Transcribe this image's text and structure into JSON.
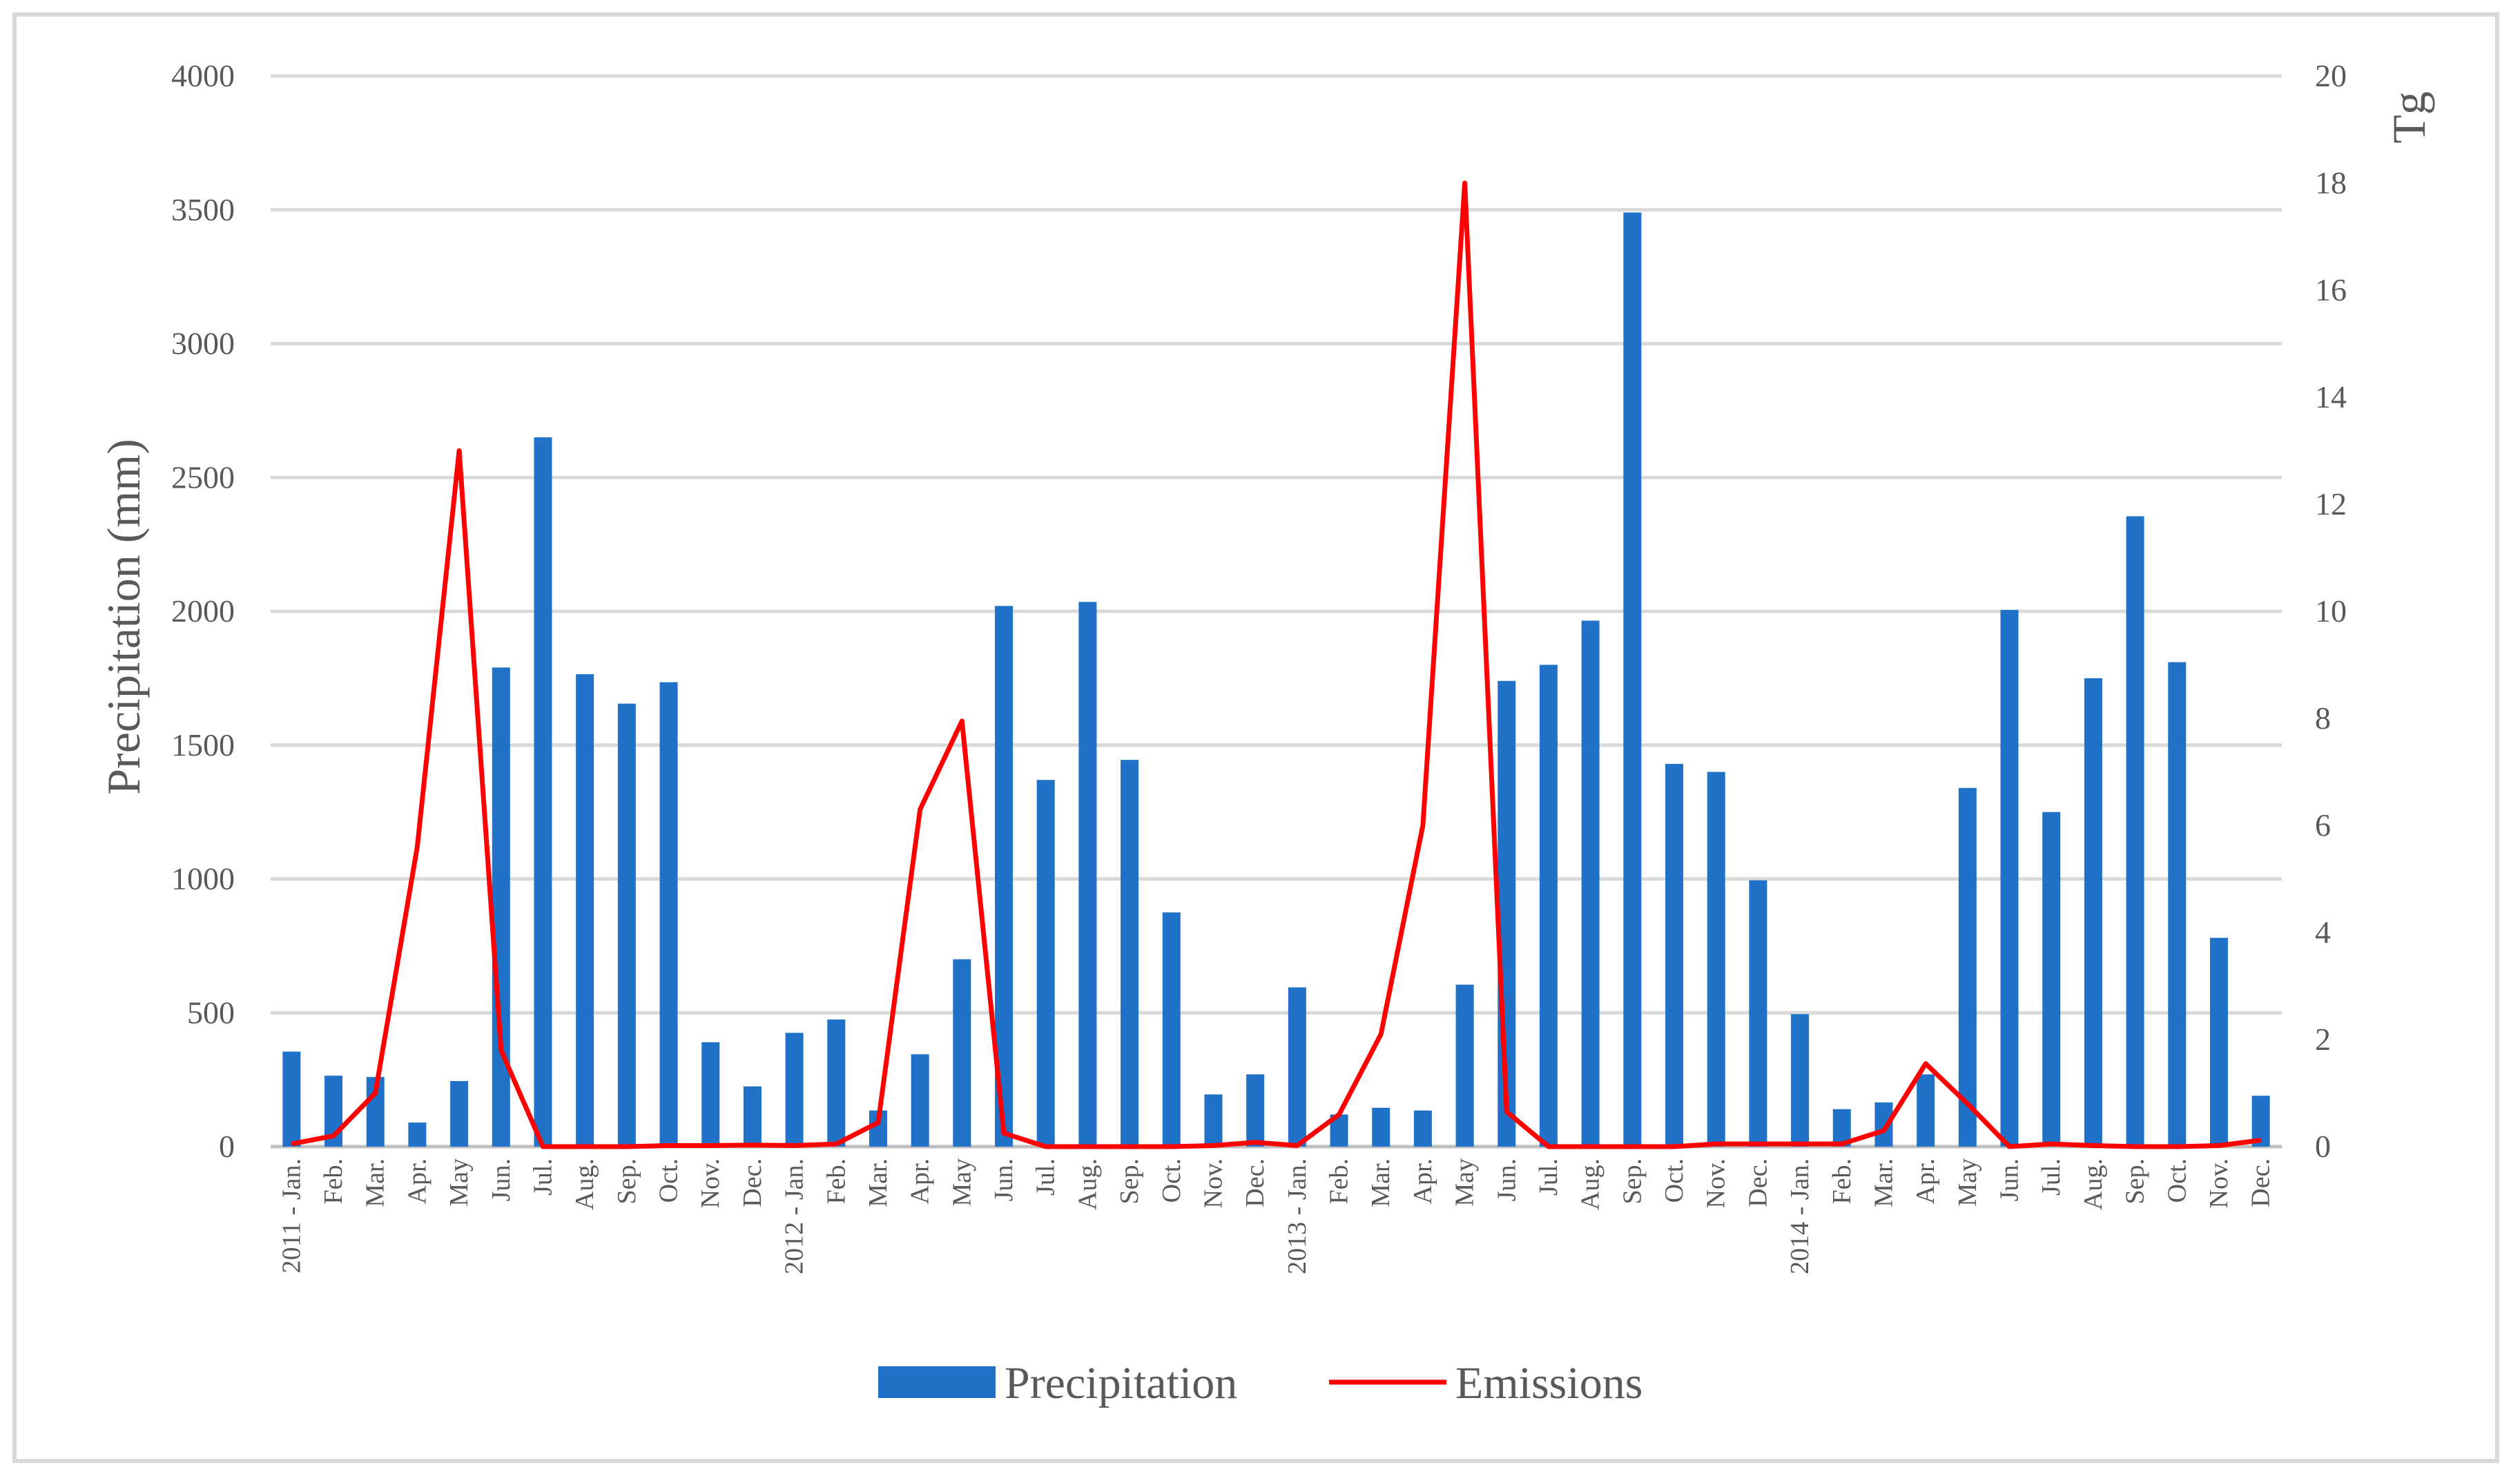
{
  "chart_data": {
    "type": "bar",
    "title": "",
    "categories": [
      "2011 - Jan.",
      "Feb.",
      "Mar.",
      "Apr.",
      "May",
      "Jun.",
      "Jul.",
      "Aug.",
      "Sep.",
      "Oct.",
      "Nov.",
      "Dec.",
      "2012 - Jan.",
      "Feb.",
      "Mar.",
      "Apr.",
      "May",
      "Jun.",
      "Jul.",
      "Aug.",
      "Sep.",
      "Oct.",
      "Nov.",
      "Dec.",
      "2013 - Jan.",
      "Feb.",
      "Mar.",
      "Apr.",
      "May",
      "Jun.",
      "Jul.",
      "Aug.",
      "Sep.",
      "Oct.",
      "Nov.",
      "Dec.",
      "2014 - Jan.",
      "Feb.",
      "Mar.",
      "Apr.",
      "May",
      "Jun.",
      "Jul.",
      "Aug.",
      "Sep.",
      "Oct.",
      "Nov.",
      "Dec."
    ],
    "series": [
      {
        "name": "Precipitation",
        "type": "bar",
        "axis": "left",
        "color": "#1f72c8",
        "values": [
          355,
          265,
          260,
          90,
          245,
          1790,
          2650,
          1765,
          1655,
          1735,
          390,
          225,
          425,
          475,
          135,
          345,
          700,
          2020,
          1370,
          2035,
          1445,
          875,
          195,
          270,
          595,
          120,
          145,
          135,
          605,
          1740,
          1800,
          1965,
          3490,
          1430,
          1400,
          995,
          495,
          140,
          165,
          270,
          1340,
          2005,
          1250,
          1750,
          2355,
          1810,
          780,
          190
        ]
      },
      {
        "name": "Emissions",
        "type": "line",
        "axis": "right",
        "color": "#ff0000",
        "values": [
          0.05,
          0.2,
          1.0,
          5.6,
          13.0,
          1.8,
          0.0,
          0.0,
          0.0,
          0.02,
          0.02,
          0.03,
          0.02,
          0.05,
          0.45,
          6.3,
          7.95,
          0.25,
          0.0,
          0.0,
          0.0,
          0.0,
          0.02,
          0.08,
          0.02,
          0.6,
          2.1,
          6.0,
          18.0,
          0.65,
          0.0,
          0.0,
          0.0,
          0.0,
          0.05,
          0.05,
          0.05,
          0.05,
          0.3,
          1.55,
          0.8,
          0.0,
          0.05,
          0.02,
          0.0,
          0.0,
          0.02,
          0.12
        ]
      }
    ],
    "ylabel": "Precipitation (mm)",
    "ylabel_right": "Tg",
    "xlabel": "",
    "ylim": [
      0,
      4000
    ],
    "ylim_right": [
      0,
      20
    ],
    "yticks": [
      "0",
      "500",
      "1000",
      "1500",
      "2000",
      "2500",
      "3000",
      "3500",
      "4000"
    ],
    "yticks_right": [
      "0",
      "2",
      "4",
      "6",
      "8",
      "10",
      "12",
      "14",
      "16",
      "18",
      "20"
    ],
    "grid": true,
    "legend_position": "bottom"
  }
}
